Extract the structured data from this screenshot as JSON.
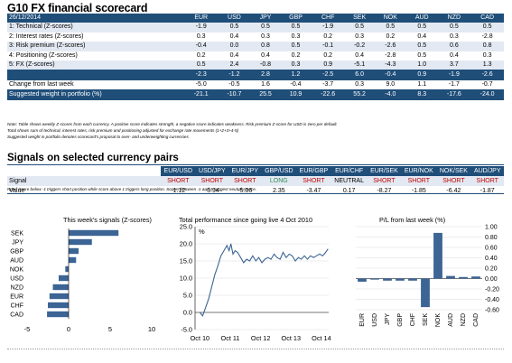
{
  "title": "G10 FX financial scorecard",
  "scorecard": {
    "date": "26/12/2014",
    "currencies": [
      "EUR",
      "USD",
      "JPY",
      "GBP",
      "CHF",
      "SEK",
      "NOK",
      "AUD",
      "NZD",
      "CAD"
    ],
    "rows": [
      {
        "label": "1: Technical (Z-scores)",
        "values": [
          "-1.9",
          "0.5",
          "0.5",
          "0.5",
          "-1.9",
          "0.5",
          "0.5",
          "0.5",
          "0.5",
          "0.5"
        ]
      },
      {
        "label": "2: Interest rates (Z-scores)",
        "values": [
          "0.3",
          "0.4",
          "0.3",
          "0.3",
          "0.2",
          "0.3",
          "0.2",
          "0.4",
          "0.3",
          "-2.8"
        ]
      },
      {
        "label": "3: Risk premium (Z-scores)",
        "values": [
          "-0.4",
          "0.0",
          "0.8",
          "0.5",
          "-0.1",
          "-0.2",
          "-2.6",
          "0.5",
          "0.6",
          "0.8"
        ]
      },
      {
        "label": "4: Positioning (Z-scores)",
        "values": [
          "0.2",
          "0.4",
          "0.4",
          "0.2",
          "0.2",
          "0.4",
          "-2.8",
          "0.5",
          "0.4",
          "0.3"
        ]
      },
      {
        "label": "5: FX (Z-scores)",
        "values": [
          "0.5",
          "2.4",
          "-0.8",
          "0.3",
          "0.9",
          "-5.1",
          "-4.3",
          "1.0",
          "3.7",
          "1.3"
        ]
      }
    ],
    "average": {
      "label": "",
      "values": [
        "-2.3",
        "-1.2",
        "2.8",
        "1.2",
        "-2.5",
        "6.0",
        "-0.4",
        "0.9",
        "-1.9",
        "-2.6"
      ]
    },
    "change": {
      "label": "Change from last week",
      "values": [
        "-5.0",
        "-0.5",
        "1.6",
        "-0.4",
        "-3.7",
        "0.3",
        "9.0",
        "1.1",
        "-1.7",
        "-0.7"
      ]
    },
    "suggested": {
      "label": "Suggested weight in portfolio (%)",
      "values": [
        "-21.1",
        "-10.7",
        "25.5",
        "10.9",
        "-22.6",
        "55.2",
        "-4.0",
        "8.3",
        "-17.6",
        "-24.0"
      ]
    }
  },
  "notes": [
    "Note: Table shows weekly Z-scores from each currency. A positive score indicates strength, a negative score indicates weakness. Risk premium Z-score for USD is zero per default.",
    "Total shows sum of technical, interest rates, risk premium and positioning adjusted for exchange rate movements (1+2+3+4-5)",
    "Suggested weight in portfolio denotes scorecard's proposal to over- and underweighting currencies"
  ],
  "signals": {
    "title": "Signals on selected currency pairs",
    "pairs": [
      "EUR/USD",
      "USD/JPY",
      "EUR/JPY",
      "GBP/USD",
      "EUR/GBP",
      "EUR/CHF",
      "EUR/SEK",
      "EUR/NOK",
      "NOK/SEK",
      "AUD/JPY"
    ],
    "signal_label": "Signal",
    "signals": [
      "SHORT",
      "SHORT",
      "SHORT",
      "LONG",
      "SHORT",
      "NEUTRAL",
      "SHORT",
      "SHORT",
      "SHORT",
      "SHORT"
    ],
    "value_label": "Value",
    "values": [
      "-1.12",
      "-3.94",
      "-5.06",
      "2.35",
      "-3.47",
      "0.17",
      "-8.27",
      "-1.85",
      "-6.42",
      "-1.87"
    ],
    "note": "Note: Score below -1 triggers short position while score above 1 triggers long position. Scores between -1 and 1 suggest neutral stance."
  },
  "colors": {
    "header": "#1f4e79",
    "band": "#e3e9f2",
    "short": "#c00000",
    "long": "#2e8b57",
    "bar": "#3c6494"
  },
  "chart_data": [
    {
      "type": "bar",
      "orientation": "horizontal",
      "title": "This week's signals (Z-scores)",
      "categories": [
        "SEK",
        "JPY",
        "GBP",
        "AUD",
        "NOK",
        "USD",
        "NZD",
        "EUR",
        "CHF",
        "CAD"
      ],
      "values": [
        6.0,
        2.8,
        1.2,
        0.9,
        -0.4,
        -1.2,
        -1.9,
        -2.3,
        -2.5,
        -2.6
      ],
      "xlim": [
        -5,
        10
      ],
      "xticks": [
        -5,
        0,
        5,
        10
      ]
    },
    {
      "type": "line",
      "title": "Total performance since going live 4 Oct 2010",
      "ylabel": "%",
      "ylim": [
        -5,
        25
      ],
      "yticks": [
        "-5.0",
        "0.0",
        "5.0",
        "10.0",
        "15.0",
        "20.0",
        "25.0"
      ],
      "xticks": [
        "Oct 10",
        "Oct 11",
        "Oct 12",
        "Oct 13",
        "Oct 14"
      ],
      "x": [
        2010.76,
        2010.85,
        2010.95,
        2011.05,
        2011.15,
        2011.25,
        2011.35,
        2011.45,
        2011.55,
        2011.65,
        2011.72,
        2011.78,
        2011.85,
        2011.92,
        2012.0,
        2012.1,
        2012.2,
        2012.3,
        2012.4,
        2012.5,
        2012.6,
        2012.7,
        2012.8,
        2012.9,
        2013.0,
        2013.1,
        2013.2,
        2013.3,
        2013.4,
        2013.5,
        2013.6,
        2013.7,
        2013.8,
        2013.9,
        2014.0,
        2014.1,
        2014.2,
        2014.3,
        2014.4,
        2014.5,
        2014.6,
        2014.7,
        2014.8,
        2014.9,
        2014.98
      ],
      "values": [
        0.0,
        -1.0,
        1.5,
        4.0,
        7.5,
        11.0,
        13.5,
        16.5,
        18.0,
        19.5,
        18.0,
        20.0,
        17.0,
        18.0,
        17.5,
        16.0,
        14.5,
        15.5,
        15.0,
        16.5,
        15.0,
        16.0,
        14.5,
        15.5,
        16.0,
        15.5,
        17.0,
        16.0,
        15.5,
        17.5,
        16.0,
        17.0,
        16.5,
        15.0,
        16.0,
        15.5,
        16.5,
        15.5,
        16.5,
        16.0,
        16.5,
        17.0,
        16.5,
        17.5,
        18.5
      ]
    },
    {
      "type": "bar",
      "title": "P/L from last week (%)",
      "categories": [
        "EUR",
        "USD",
        "JPY",
        "GBP",
        "CHF",
        "SEK",
        "NOK",
        "AUD",
        "NZD",
        "CAD"
      ],
      "values": [
        -0.06,
        -0.02,
        -0.04,
        -0.04,
        -0.04,
        -0.55,
        0.88,
        0.05,
        0.03,
        0.04
      ],
      "ylim": [
        -0.6,
        1.0
      ],
      "yticks": [
        "-0.60",
        "-0.40",
        "-0.20",
        "0.00",
        "0.20",
        "0.40",
        "0.60",
        "0.80",
        "1.00"
      ]
    }
  ]
}
